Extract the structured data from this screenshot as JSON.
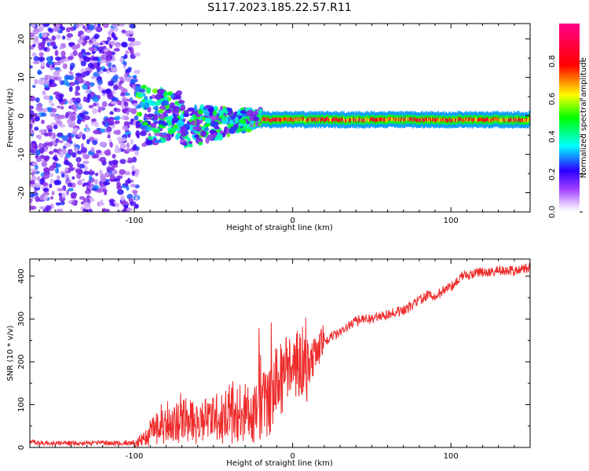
{
  "title": "S117.2023.185.22.57.R11",
  "colors": {
    "snr_line": "#ee2a2a",
    "axis": "#000000",
    "background": "#ffffff"
  },
  "chart_data": [
    {
      "type": "heatmap",
      "xlabel": "Height of straight line (km)",
      "ylabel": "Frequency (Hz)",
      "xlim": [
        -166,
        150
      ],
      "ylim": [
        -25,
        24
      ],
      "x_ticks": [
        -100,
        0,
        100
      ],
      "x_tick_labels": [
        "-100",
        "0",
        "100"
      ],
      "y_ticks": [
        -20,
        -10,
        0,
        10,
        20
      ],
      "y_tick_labels": [
        "-20",
        "-10",
        "0",
        "10",
        "20"
      ],
      "colorbar": {
        "label": "Normalized spectral amplitude",
        "range": [
          0,
          1
        ],
        "ticks": [
          0.0,
          0.2,
          0.4,
          0.6,
          0.8
        ],
        "tick_labels": [
          "0.0",
          "0.2",
          "0.4",
          "0.6",
          "0.8"
        ],
        "colormap": [
          "#ffffff",
          "#e0c8ff",
          "#8a2be2",
          "#3000ff",
          "#00ffff",
          "#00ff00",
          "#ffff00",
          "#ff0000",
          "#ff0080"
        ]
      },
      "regions": [
        {
          "x_range": [
            -166,
            -98
          ],
          "frequency_range": [
            -25,
            24
          ],
          "amplitude_range": [
            0.05,
            0.3
          ]
        },
        {
          "x_range": [
            -98,
            -20
          ],
          "frequency_range": [
            -8,
            8
          ],
          "amplitude_range": [
            0.1,
            0.55
          ]
        },
        {
          "x_range": [
            -20,
            150
          ],
          "frequency_center": -1,
          "frequency_width": 2,
          "amplitude_range": [
            0.6,
            0.95
          ]
        }
      ]
    },
    {
      "type": "line",
      "xlabel": "Height of straight line (km)",
      "ylabel": "SNR (10 * v/v)",
      "xlim": [
        -166,
        150
      ],
      "ylim": [
        0,
        440
      ],
      "x_ticks": [
        -100,
        0,
        100
      ],
      "x_tick_labels": [
        "-100",
        "0",
        "100"
      ],
      "y_ticks": [
        0,
        100,
        200,
        300,
        400
      ],
      "y_tick_labels": [
        "0",
        "100",
        "200",
        "300",
        "400"
      ],
      "series": [
        {
          "x": [
            -166,
            -150,
            -130,
            -110,
            -100,
            -95,
            -90,
            -85,
            -80,
            -75,
            -70,
            -65,
            -60,
            -55,
            -50,
            -45,
            -40,
            -35,
            -30,
            -25,
            -20,
            -15,
            -10,
            -5,
            0,
            5,
            10,
            15,
            20,
            25,
            30,
            35,
            40,
            45,
            50,
            55,
            60,
            65,
            70,
            75,
            80,
            85,
            90,
            95,
            100,
            105,
            110,
            115,
            120,
            125,
            130,
            135,
            140,
            145,
            150
          ],
          "values": [
            12,
            10,
            10,
            10,
            12,
            20,
            35,
            50,
            60,
            55,
            70,
            60,
            55,
            65,
            70,
            65,
            80,
            85,
            80,
            75,
            120,
            110,
            150,
            175,
            205,
            200,
            190,
            220,
            245,
            260,
            270,
            285,
            295,
            300,
            300,
            305,
            310,
            315,
            320,
            330,
            345,
            355,
            350,
            365,
            375,
            395,
            405,
            405,
            410,
            410,
            415,
            415,
            412,
            418,
            420
          ]
        }
      ]
    }
  ]
}
